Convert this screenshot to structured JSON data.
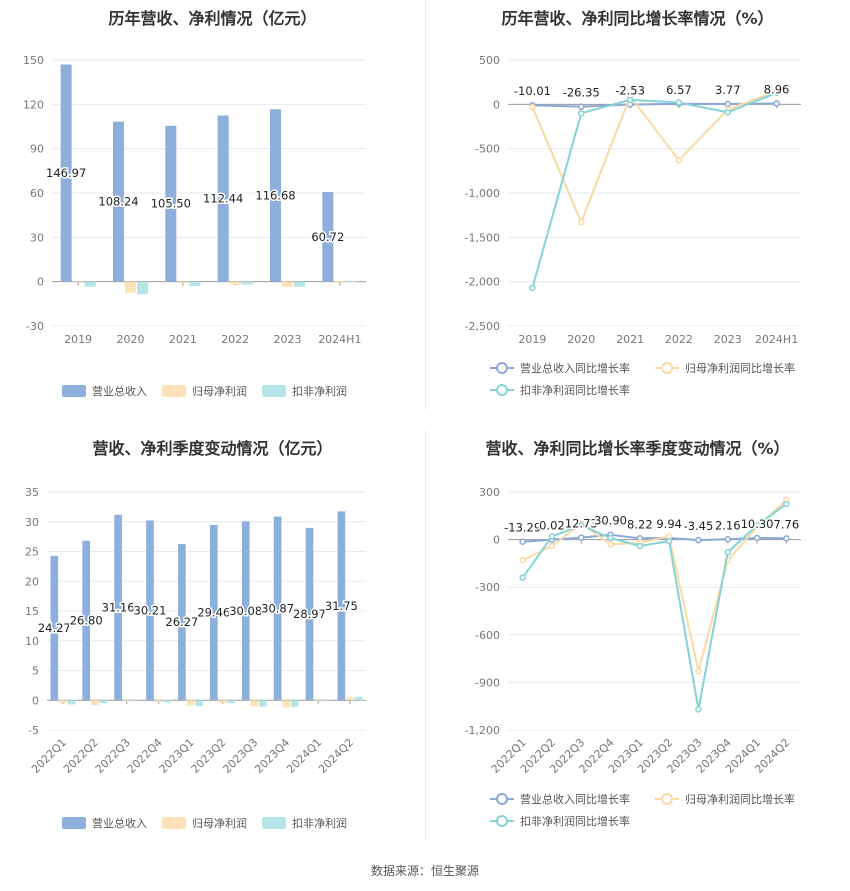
{
  "source_text": "数据来源：恒生聚源",
  "colors": {
    "revenue": "#8eaedb",
    "net_profit": "#fde2b8",
    "deducted_profit": "#b7e4e8",
    "line_revenue": "#8aa9d6",
    "line_net": "#fbd9a4",
    "line_deducted": "#84d3d6",
    "grid": "#e6e9f0",
    "axis": "#999999"
  },
  "chart_data": [
    {
      "title": "历年营收、净利情况（亿元）",
      "type": "bar",
      "categories": [
        "2019",
        "2020",
        "2021",
        "2022",
        "2023",
        "2024H1"
      ],
      "y_ticks": [
        "150",
        "120",
        "90",
        "60",
        "30",
        "0",
        "-30"
      ],
      "ylim": [
        -30,
        150
      ],
      "series": [
        {
          "name": "营业总收入",
          "values": [
            146.97,
            108.24,
            105.5,
            112.44,
            116.68,
            60.72
          ],
          "labels": [
            "146.97",
            "108.24",
            "105.50",
            "112.44",
            "116.68",
            "60.72"
          ]
        },
        {
          "name": "归母净利润",
          "values": [
            -0.5,
            -7.5,
            -0.8,
            -2.0,
            -3.5,
            0.3
          ]
        },
        {
          "name": "扣非净利润",
          "values": [
            -3.5,
            -8.5,
            -3.0,
            -2.0,
            -3.5,
            0.6
          ]
        }
      ],
      "legend_position": "bottom"
    },
    {
      "title": "历年营收、净利同比增长率情况（%）",
      "type": "line",
      "categories": [
        "2019",
        "2020",
        "2021",
        "2022",
        "2023",
        "2024H1"
      ],
      "y_ticks": [
        "500",
        "0",
        "-500",
        "-1,000",
        "-1,500",
        "-2,000",
        "-2,500"
      ],
      "ylim": [
        -2500,
        500
      ],
      "series": [
        {
          "name": "营业总收入同比增长率",
          "values": [
            -10.01,
            -26.35,
            -2.53,
            6.57,
            3.77,
            8.96
          ],
          "labels": [
            "-10.01",
            "-26.35",
            "-2.53",
            "6.57",
            "3.77",
            "8.96"
          ]
        },
        {
          "name": "归母净利润同比增长率",
          "values": [
            -30,
            -1330,
            90,
            -630,
            -60,
            150
          ]
        },
        {
          "name": "扣非净利润同比增长率",
          "values": [
            -2070,
            -100,
            50,
            20,
            -90,
            130
          ]
        }
      ],
      "legend_position": "bottom"
    },
    {
      "title": "营收、净利季度变动情况（亿元）",
      "type": "bar",
      "categories": [
        "2022Q1",
        "2022Q2",
        "2022Q3",
        "2022Q4",
        "2023Q1",
        "2023Q2",
        "2023Q3",
        "2023Q4",
        "2024Q1",
        "2024Q2"
      ],
      "y_ticks": [
        "35",
        "30",
        "25",
        "20",
        "15",
        "10",
        "5",
        "0",
        "-5"
      ],
      "ylim": [
        -5,
        35
      ],
      "series": [
        {
          "name": "营业总收入",
          "values": [
            24.27,
            26.8,
            31.16,
            30.21,
            26.27,
            29.46,
            30.08,
            30.87,
            28.97,
            31.75
          ],
          "labels": [
            "24.27",
            "26.80",
            "31.16",
            "30.21",
            "26.27",
            "29.46",
            "30.08",
            "30.87",
            "28.97",
            "31.75"
          ]
        },
        {
          "name": "归母净利润",
          "values": [
            -0.5,
            -0.8,
            -0.1,
            -0.3,
            -0.9,
            -0.4,
            -1.0,
            -1.2,
            -0.1,
            0.5
          ]
        },
        {
          "name": "扣非净利润",
          "values": [
            -0.7,
            -0.5,
            -0.1,
            -0.4,
            -1.0,
            -0.5,
            -1.1,
            -1.1,
            -0.1,
            0.6
          ]
        }
      ],
      "legend_position": "bottom"
    },
    {
      "title": "营收、净利同比增长率季度变动情况（%）",
      "type": "line",
      "categories": [
        "2022Q1",
        "2022Q2",
        "2022Q3",
        "2022Q4",
        "2023Q1",
        "2023Q2",
        "2023Q3",
        "2023Q4",
        "2024Q1",
        "2024Q2"
      ],
      "y_ticks": [
        "300",
        "0",
        "-300",
        "-600",
        "-900",
        "-1,200"
      ],
      "ylim": [
        -1200,
        300
      ],
      "series": [
        {
          "name": "营业总收入同比增长率",
          "values": [
            -13.29,
            0.02,
            12.73,
            30.9,
            8.22,
            9.94,
            -3.45,
            2.16,
            10.3,
            7.76
          ],
          "labels": [
            "-13.29",
            "0.02",
            "12.73",
            "30.90",
            "8.22",
            "9.94",
            "-3.45",
            "2.16",
            "10.30",
            "7.76"
          ]
        },
        {
          "name": "归母净利润同比增长率",
          "values": [
            -130,
            -40,
            100,
            -30,
            -20,
            20,
            -830,
            -130,
            80,
            250
          ]
        },
        {
          "name": "扣非净利润同比增长率",
          "values": [
            -240,
            20,
            90,
            10,
            -40,
            -10,
            -1070,
            -80,
            90,
            225
          ]
        }
      ],
      "legend_position": "bottom"
    }
  ]
}
